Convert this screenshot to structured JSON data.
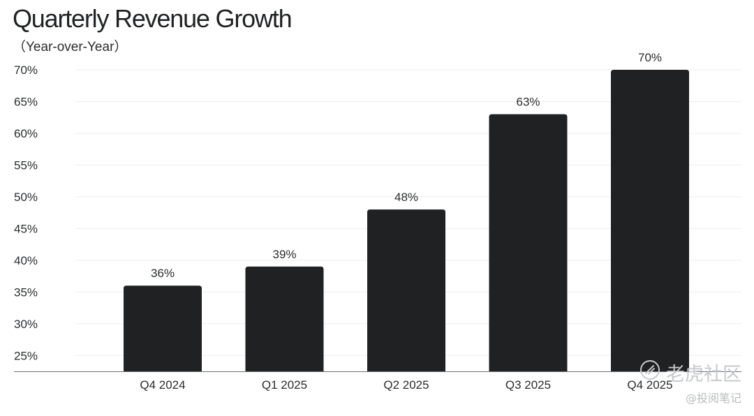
{
  "chart_data": {
    "type": "bar",
    "title": "Quarterly Revenue Growth",
    "subtitle": "（Year-over-Year）",
    "categories": [
      "Q4 2024",
      "Q1 2025",
      "Q2 2025",
      "Q3 2025",
      "Q4 2025"
    ],
    "values": [
      36,
      39,
      48,
      63,
      70
    ],
    "value_labels": [
      "36%",
      "39%",
      "48%",
      "63%",
      "70%"
    ],
    "y_ticks": [
      25,
      30,
      35,
      40,
      45,
      50,
      55,
      60,
      65,
      70
    ],
    "y_tick_labels": [
      "25%",
      "30%",
      "35%",
      "40%",
      "45%",
      "50%",
      "55%",
      "60%",
      "65%",
      "70%"
    ],
    "ylim": [
      22.5,
      70
    ],
    "grid": true,
    "xlabel": "",
    "ylabel": "",
    "colors": {
      "bar": "#1f2123",
      "grid": "#eceeef",
      "axis": "#6b6e71"
    }
  },
  "watermark": {
    "main": "老虎社区",
    "sub": "@投阅笔记",
    "icon": "tiger-paw-icon"
  }
}
